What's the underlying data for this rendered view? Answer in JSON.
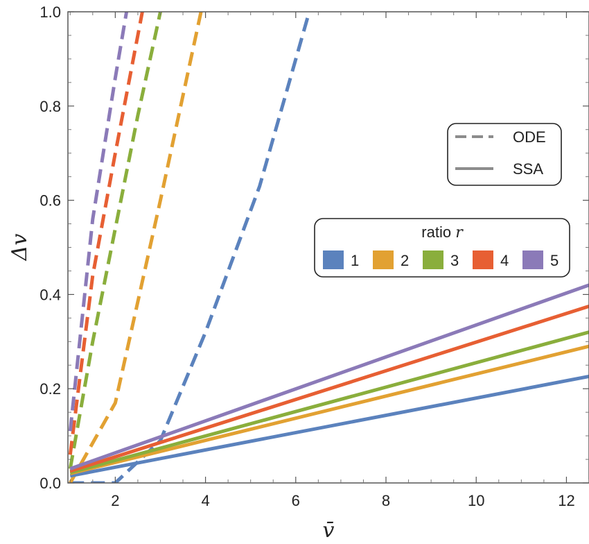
{
  "chart_data": {
    "type": "line",
    "xlabel": "v̄",
    "ylabel": "Δv",
    "xlim": [
      0.95,
      12.5
    ],
    "ylim": [
      0,
      1
    ],
    "x_ticks": [
      "2",
      "4",
      "6",
      "8",
      "10",
      "12"
    ],
    "y_ticks": [
      "0.0",
      "0.2",
      "0.4",
      "0.6",
      "0.8",
      "1.0"
    ],
    "style_legend": {
      "placement": "right",
      "entries": [
        {
          "label": "ODE",
          "style": "dashed",
          "color": "#8c8c8c"
        },
        {
          "label": "SSA",
          "style": "solid",
          "color": "#8c8c8c"
        }
      ]
    },
    "color_legend": {
      "title": "ratio",
      "title_var": "r",
      "placement": "right",
      "entries": [
        {
          "label": "1",
          "color": "#5b82bd"
        },
        {
          "label": "2",
          "color": "#e2a132"
        },
        {
          "label": "3",
          "color": "#8aae3c"
        },
        {
          "label": "4",
          "color": "#e75f33"
        },
        {
          "label": "5",
          "color": "#8b7ab8"
        }
      ]
    },
    "series": [
      {
        "ratio": "1",
        "style": "dashed",
        "color": "#5b82bd",
        "points": [
          [
            1.0,
            0.0
          ],
          [
            2.0,
            0.0
          ],
          [
            3.0,
            0.09
          ],
          [
            4.0,
            0.32
          ],
          [
            5.2,
            0.63
          ],
          [
            6.3,
            1.0
          ]
        ]
      },
      {
        "ratio": "2",
        "style": "dashed",
        "color": "#e2a132",
        "points": [
          [
            1.0,
            0.0
          ],
          [
            2.0,
            0.17
          ],
          [
            3.0,
            0.6
          ],
          [
            3.9,
            1.0
          ]
        ]
      },
      {
        "ratio": "3",
        "style": "dashed",
        "color": "#8aae3c",
        "points": [
          [
            1.0,
            0.03
          ],
          [
            1.5,
            0.3
          ],
          [
            2.0,
            0.54
          ],
          [
            2.5,
            0.78
          ],
          [
            3.0,
            1.0
          ]
        ]
      },
      {
        "ratio": "4",
        "style": "dashed",
        "color": "#e75f33",
        "points": [
          [
            1.0,
            0.06
          ],
          [
            1.5,
            0.44
          ],
          [
            2.0,
            0.7
          ],
          [
            2.6,
            1.0
          ]
        ]
      },
      {
        "ratio": "5",
        "style": "dashed",
        "color": "#8b7ab8",
        "points": [
          [
            1.0,
            0.11
          ],
          [
            1.5,
            0.56
          ],
          [
            2.0,
            0.86
          ],
          [
            2.25,
            1.0
          ]
        ]
      },
      {
        "ratio": "1",
        "style": "solid",
        "color": "#5b82bd",
        "points": [
          [
            1.0,
            0.015
          ],
          [
            12.5,
            0.226
          ]
        ]
      },
      {
        "ratio": "2",
        "style": "solid",
        "color": "#e2a132",
        "points": [
          [
            1.0,
            0.02
          ],
          [
            12.5,
            0.29
          ]
        ]
      },
      {
        "ratio": "3",
        "style": "solid",
        "color": "#8aae3c",
        "points": [
          [
            1.0,
            0.022
          ],
          [
            12.5,
            0.32
          ]
        ]
      },
      {
        "ratio": "4",
        "style": "solid",
        "color": "#e75f33",
        "points": [
          [
            1.0,
            0.025
          ],
          [
            12.5,
            0.375
          ]
        ]
      },
      {
        "ratio": "5",
        "style": "solid",
        "color": "#8b7ab8",
        "points": [
          [
            1.0,
            0.03
          ],
          [
            12.5,
            0.42
          ]
        ]
      }
    ]
  }
}
